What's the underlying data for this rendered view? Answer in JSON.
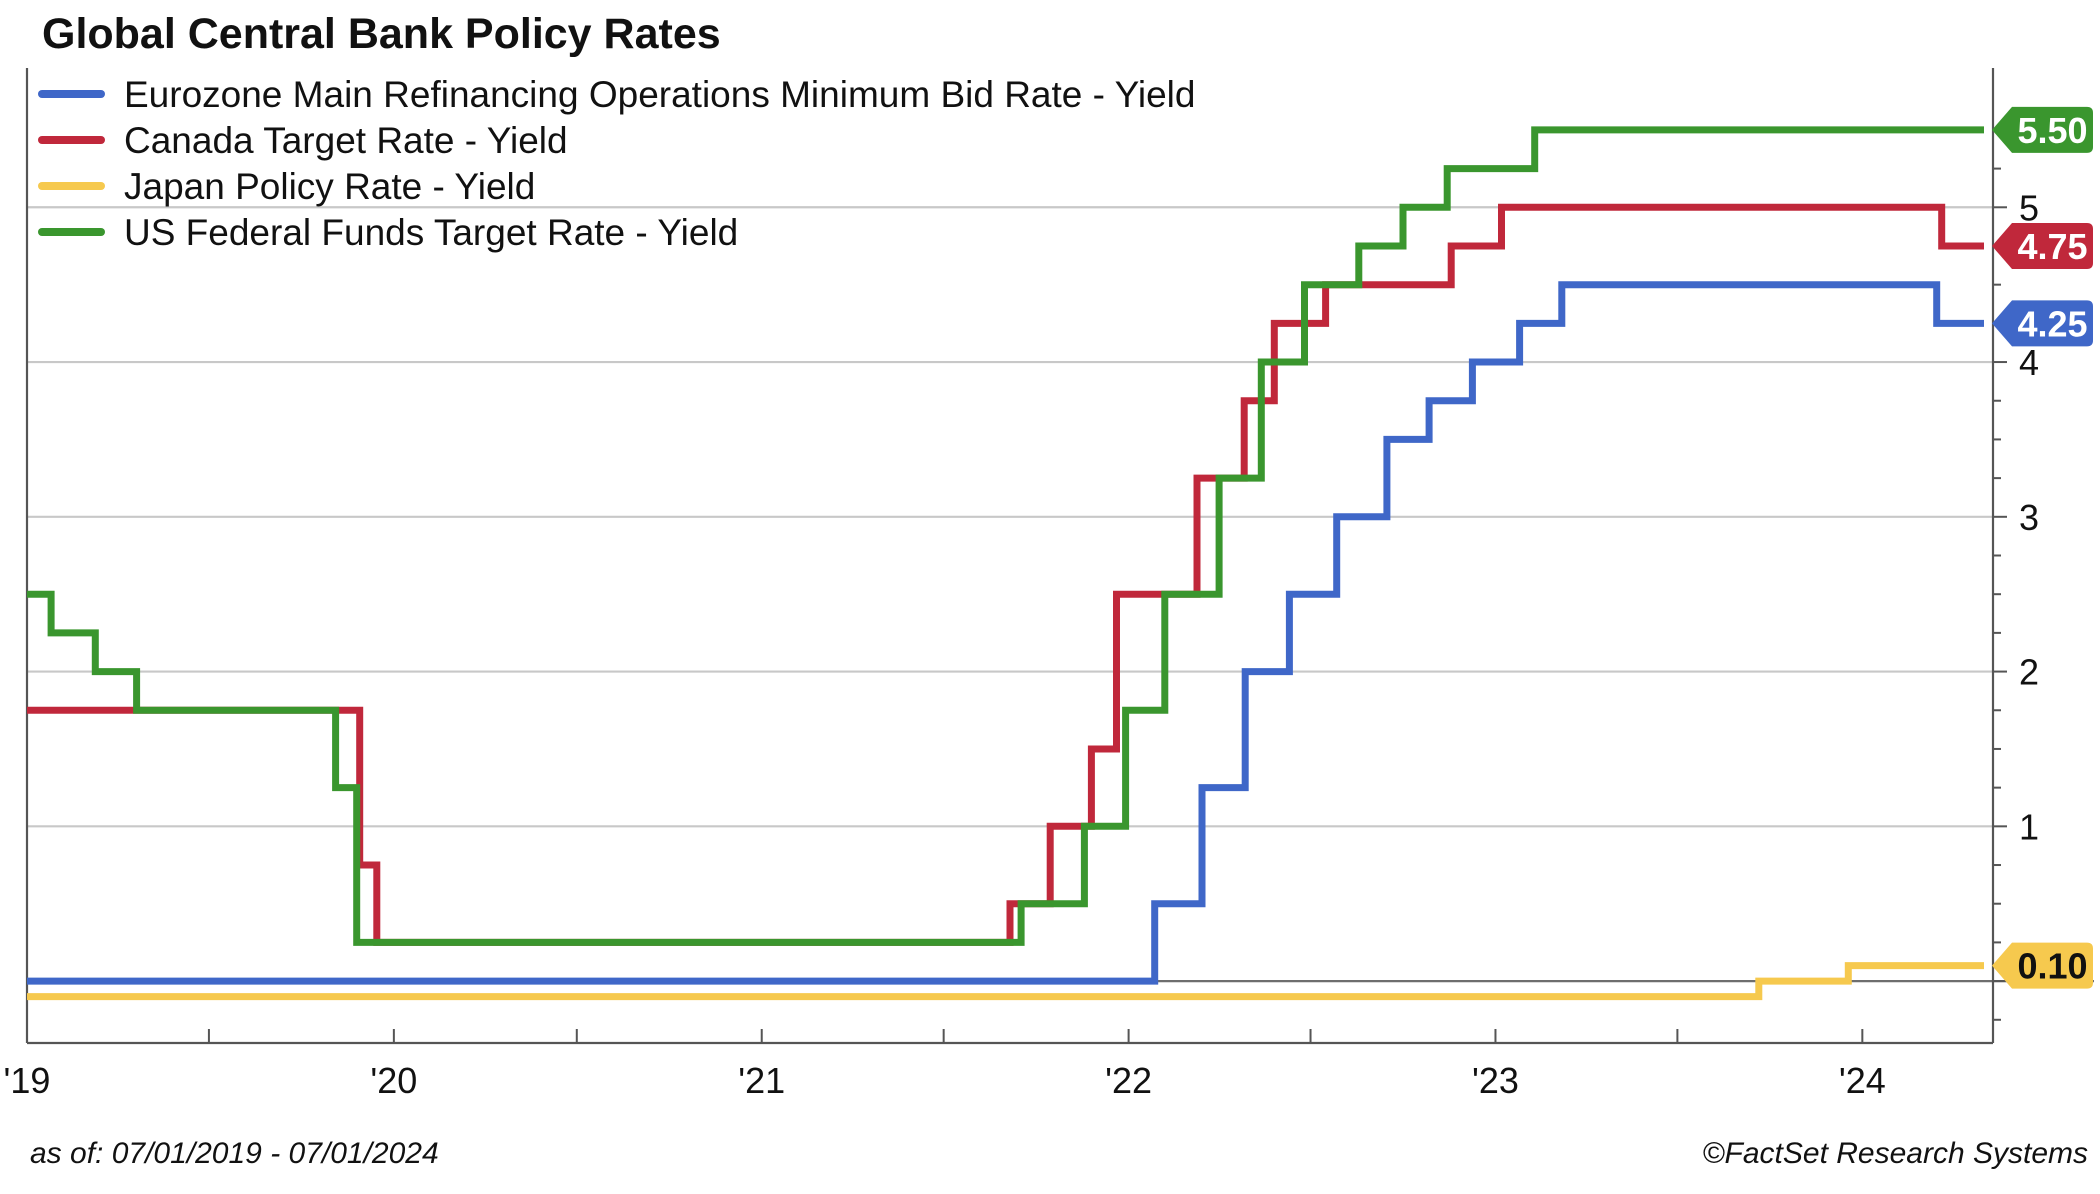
{
  "chart_data": {
    "type": "line",
    "title": "Global Central Bank Policy Rates",
    "x_domain": [
      "2019-01-01",
      "2024-05-10"
    ],
    "ylim": [
      -0.4,
      5.9
    ],
    "y_ticks": [
      1,
      2,
      3,
      4,
      5
    ],
    "x_ticks": [
      {
        "date": "2019-01-01",
        "label": "'19"
      },
      {
        "date": "2020-01-01",
        "label": "'20"
      },
      {
        "date": "2021-01-01",
        "label": "'21"
      },
      {
        "date": "2022-01-01",
        "label": "'22"
      },
      {
        "date": "2023-01-01",
        "label": "'23"
      },
      {
        "date": "2024-01-01",
        "label": "'24"
      }
    ],
    "grid": true,
    "zero_line": true,
    "legend_position": "top-left",
    "footer_left": "as of: 07/01/2019 - 07/01/2024",
    "footer_right": "©FactSet Research Systems",
    "series": [
      {
        "name": "Eurozone Main Refinancing Operations Minimum Bid Rate - Yield",
        "color": "#3f67c8",
        "end_label": "4.25",
        "badge_text_color": "#ffffff",
        "points": [
          [
            "2019-01-01",
            0
          ],
          [
            "2022-01-27",
            0.5
          ],
          [
            "2022-03-15",
            1.25
          ],
          [
            "2022-04-27",
            2.0
          ],
          [
            "2022-06-10",
            2.5
          ],
          [
            "2022-07-27",
            3.0
          ],
          [
            "2022-09-15",
            3.5
          ],
          [
            "2022-10-27",
            3.75
          ],
          [
            "2022-12-09",
            4.0
          ],
          [
            "2023-01-25",
            4.25
          ],
          [
            "2023-03-08",
            4.5
          ],
          [
            "2024-03-15",
            4.25
          ],
          [
            "2024-05-01",
            4.25
          ]
        ]
      },
      {
        "name": "Canada Target Rate - Yield",
        "color": "#c0283b",
        "end_label": "4.75",
        "badge_text_color": "#ffffff",
        "points": [
          [
            "2019-01-01",
            1.75
          ],
          [
            "2019-11-28",
            0.75
          ],
          [
            "2019-12-15",
            0.25
          ],
          [
            "2021-09-05",
            0.5
          ],
          [
            "2021-10-15",
            1.0
          ],
          [
            "2021-11-25",
            1.5
          ],
          [
            "2021-12-20",
            2.5
          ],
          [
            "2022-03-10",
            3.25
          ],
          [
            "2022-04-26",
            3.75
          ],
          [
            "2022-05-26",
            4.25
          ],
          [
            "2022-07-16",
            4.5
          ],
          [
            "2022-11-18",
            4.75
          ],
          [
            "2023-01-07",
            5.0
          ],
          [
            "2024-03-20",
            4.75
          ],
          [
            "2024-05-01",
            4.75
          ]
        ]
      },
      {
        "name": "Japan Policy Rate - Yield",
        "color": "#f6c94e",
        "end_label": "0.10",
        "badge_text_color": "#111111",
        "points": [
          [
            "2019-01-01",
            -0.1
          ],
          [
            "2023-09-20",
            0.0
          ],
          [
            "2023-12-18",
            0.1
          ],
          [
            "2024-05-01",
            0.1
          ]
        ]
      },
      {
        "name": "US Federal Funds Target Rate - Yield",
        "color": "#3a962e",
        "end_label": "5.50",
        "badge_text_color": "#ffffff",
        "points": [
          [
            "2019-01-01",
            2.5
          ],
          [
            "2019-01-25",
            2.25
          ],
          [
            "2019-03-10",
            2.0
          ],
          [
            "2019-04-20",
            1.75
          ],
          [
            "2019-11-04",
            1.25
          ],
          [
            "2019-11-25",
            0.25
          ],
          [
            "2021-09-16",
            0.5
          ],
          [
            "2021-11-18",
            1.0
          ],
          [
            "2021-12-29",
            1.75
          ],
          [
            "2022-02-06",
            2.5
          ],
          [
            "2022-04-01",
            3.25
          ],
          [
            "2022-05-13",
            4.0
          ],
          [
            "2022-06-25",
            4.5
          ],
          [
            "2022-08-18",
            4.75
          ],
          [
            "2022-10-01",
            5.0
          ],
          [
            "2022-11-14",
            5.25
          ],
          [
            "2023-02-09",
            5.5
          ],
          [
            "2024-05-01",
            5.5
          ]
        ]
      }
    ]
  }
}
